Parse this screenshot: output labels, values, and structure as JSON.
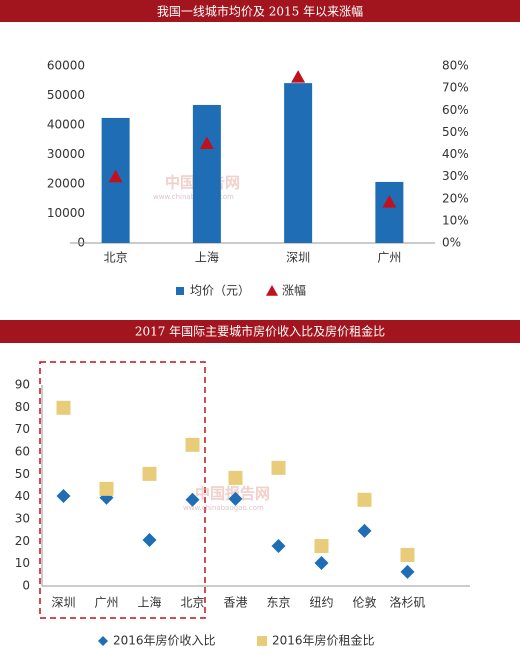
{
  "chart_data": [
    {
      "type": "bar",
      "title": "我国一线城市均价及 2015 年以来涨幅",
      "categories": [
        "北京",
        "上海",
        "深圳",
        "广州"
      ],
      "series": [
        {
          "name": "均价（元）",
          "type": "bar",
          "color": "#1f6eb5",
          "values": [
            42400,
            46800,
            54200,
            20700
          ]
        },
        {
          "name": "涨幅",
          "type": "marker",
          "marker": "triangle",
          "axis": "y2",
          "color": "#c0121c",
          "values": [
            30,
            45,
            75,
            18.5
          ]
        }
      ],
      "ylim": [
        0,
        60000
      ],
      "yticks": [
        0,
        10000,
        20000,
        30000,
        40000,
        50000,
        60000
      ],
      "y2lim": [
        0,
        80
      ],
      "y2ticks": [
        {
          "value": 0,
          "label": "0%"
        },
        {
          "value": 10,
          "label": "10%"
        },
        {
          "value": 20,
          "label": "20%"
        },
        {
          "value": 30,
          "label": "30%"
        },
        {
          "value": 40,
          "label": "40%"
        },
        {
          "value": 50,
          "label": "50%"
        },
        {
          "value": 60,
          "label": "60%"
        },
        {
          "value": 70,
          "label": "70%"
        },
        {
          "value": 80,
          "label": "80%"
        }
      ],
      "watermark": "中国报告网",
      "watermark_url": "www.chinabaogao.com"
    },
    {
      "type": "scatter",
      "title": "2017 年国际主要城市房价收入比及房价租金比",
      "categories": [
        "深圳",
        "广州",
        "上海",
        "北京",
        "香港",
        "东京",
        "纽约",
        "伦敦",
        "洛杉矶"
      ],
      "series": [
        {
          "name": "2016年房价收入比",
          "type": "marker",
          "marker": "diamond",
          "color": "#1f6eb5",
          "values": [
            40.3,
            39.5,
            20.6,
            38.6,
            39,
            17.9,
            10.3,
            24.7,
            6.3
          ]
        },
        {
          "name": "2016年房价租金比",
          "type": "marker",
          "marker": "square",
          "color": "#e8cc7a",
          "values": [
            79.8,
            43.5,
            50.2,
            63.2,
            48.4,
            52.9,
            17.9,
            38.6,
            13.9
          ]
        }
      ],
      "ylim": [
        0,
        90
      ],
      "yticks": [
        0,
        10,
        20,
        30,
        40,
        50,
        60,
        70,
        80,
        90
      ],
      "watermark": "中国报告网",
      "watermark_url": "www.chinabaogao.com"
    }
  ]
}
